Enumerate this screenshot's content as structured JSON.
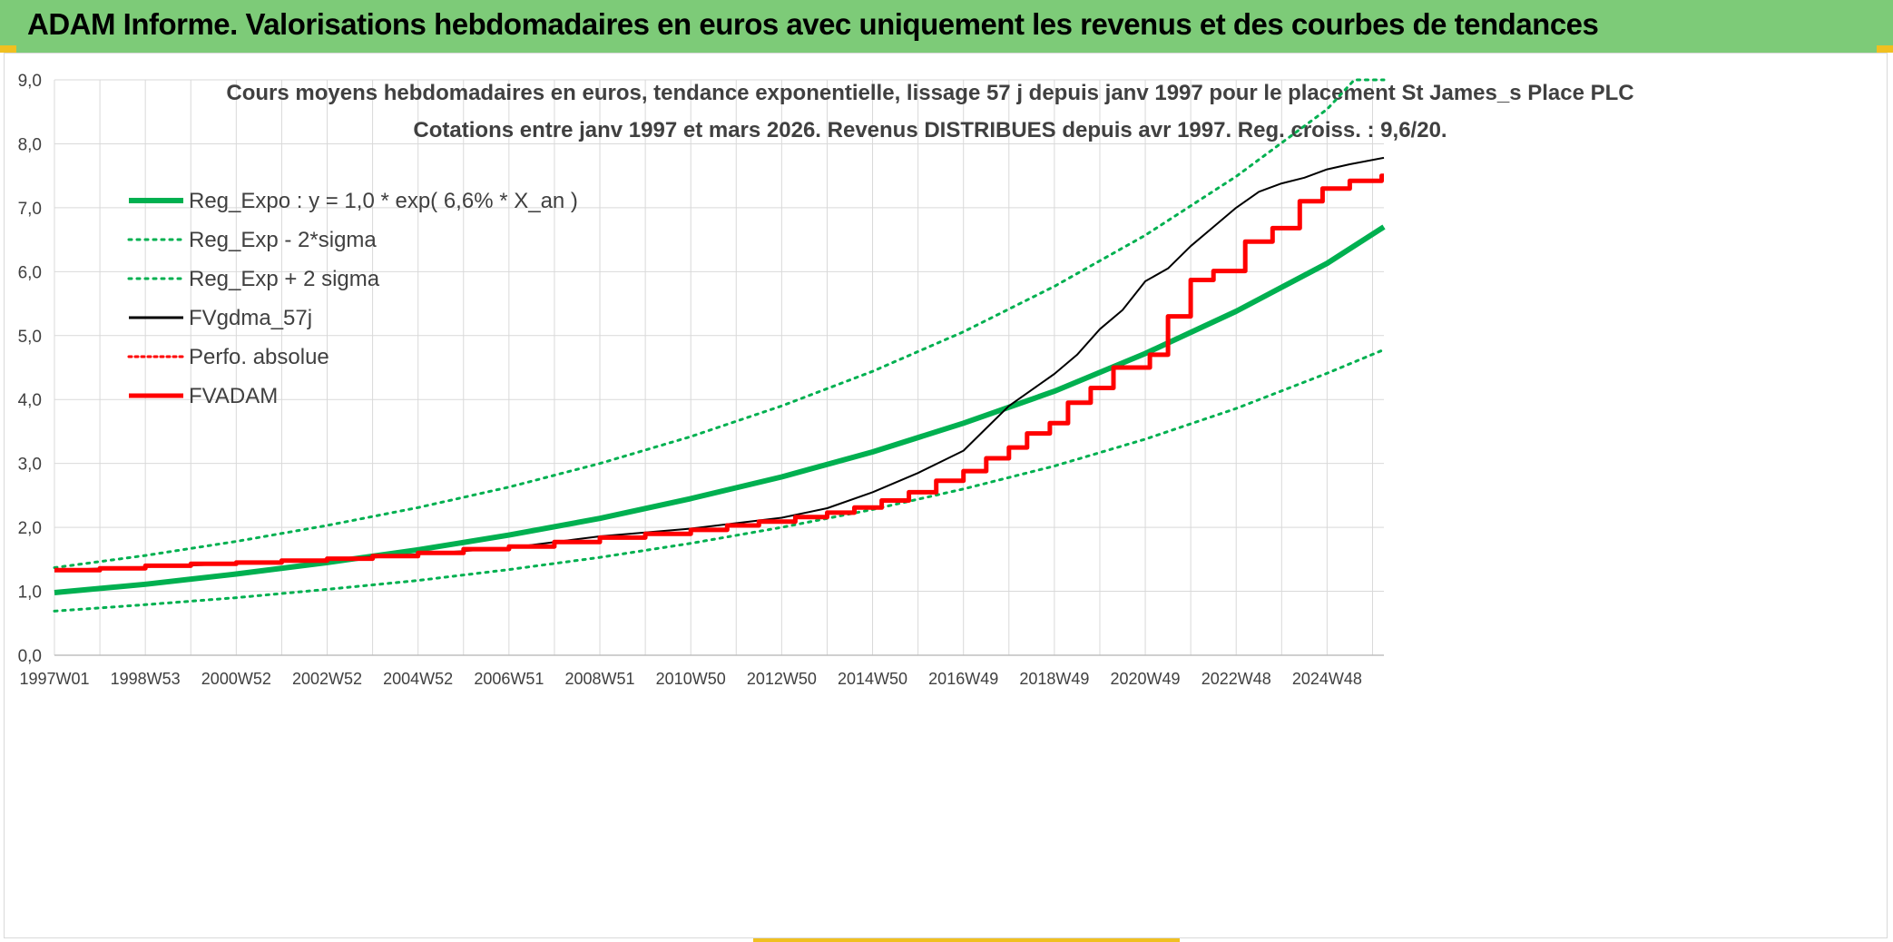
{
  "header": {
    "title": "ADAM Informe. Valorisations hebdomadaires en euros avec uniquement les revenus et des courbes de tendances"
  },
  "colors": {
    "header_bg": "#7dcb78",
    "trend_green": "#00b050",
    "fv_black": "#000000",
    "adam_red": "#ff0000",
    "grid": "#d9d9d9"
  },
  "chart_data": {
    "type": "line",
    "title": "Cours moyens hebdomadaires en euros, tendance exponentielle, lissage 57 j depuis janv 1997 pour le placement St James_s Place PLC",
    "subtitle": "Cotations entre janv 1997 et mars 2026. Revenus DISTRIBUES depuis avr 1997. Reg. croiss. : 9,6/20.",
    "xlabel": "",
    "ylabel": "",
    "ylim": [
      0,
      9
    ],
    "yticks": [
      "0,0",
      "1,0",
      "2,0",
      "3,0",
      "4,0",
      "5,0",
      "6,0",
      "7,0",
      "8,0",
      "9,0"
    ],
    "xlim": [
      1997.0,
      2026.25
    ],
    "xticks": [
      {
        "x": 1997.0,
        "label": "1997W01"
      },
      {
        "x": 1999.0,
        "label": "1998W53"
      },
      {
        "x": 2001.0,
        "label": "2000W52"
      },
      {
        "x": 2003.0,
        "label": "2002W52"
      },
      {
        "x": 2005.0,
        "label": "2004W52"
      },
      {
        "x": 2007.0,
        "label": "2006W51"
      },
      {
        "x": 2009.0,
        "label": "2008W51"
      },
      {
        "x": 2011.0,
        "label": "2010W50"
      },
      {
        "x": 2013.0,
        "label": "2012W50"
      },
      {
        "x": 2015.0,
        "label": "2014W50"
      },
      {
        "x": 2017.0,
        "label": "2016W49"
      },
      {
        "x": 2019.0,
        "label": "2018W49"
      },
      {
        "x": 2021.0,
        "label": "2020W49"
      },
      {
        "x": 2023.0,
        "label": "2022W48"
      },
      {
        "x": 2025.0,
        "label": "2024W48"
      }
    ],
    "grid": true,
    "legend_position": "top-left",
    "series": [
      {
        "name": "Reg_Expo : y = 1,0 * exp( 6,6% *  X_an )",
        "color": "#00b050",
        "style": "solid",
        "width": 6,
        "x": [
          1997,
          1999,
          2001,
          2003,
          2005,
          2007,
          2009,
          2011,
          2013,
          2015,
          2017,
          2019,
          2021,
          2023,
          2025,
          2026.25
        ],
        "y": [
          0.98,
          1.11,
          1.27,
          1.45,
          1.65,
          1.88,
          2.14,
          2.45,
          2.79,
          3.18,
          3.63,
          4.13,
          4.72,
          5.38,
          6.13,
          6.7
        ]
      },
      {
        "name": "Reg_Exp - 2*sigma",
        "color": "#00b050",
        "style": "dotted",
        "width": 3,
        "x": [
          1997,
          1999,
          2001,
          2003,
          2005,
          2007,
          2009,
          2011,
          2013,
          2015,
          2017,
          2019,
          2021,
          2023,
          2025,
          2026.25
        ],
        "y": [
          0.69,
          0.79,
          0.9,
          1.03,
          1.17,
          1.34,
          1.53,
          1.75,
          2.0,
          2.28,
          2.6,
          2.96,
          3.38,
          3.86,
          4.41,
          4.78
        ]
      },
      {
        "name": "Reg_Exp + 2 sigma",
        "color": "#00b050",
        "style": "dotted",
        "width": 3,
        "x": [
          1997,
          1999,
          2001,
          2003,
          2005,
          2007,
          2009,
          2011,
          2013,
          2015,
          2017,
          2019,
          2021,
          2023,
          2025,
          2025.6,
          2026.25
        ],
        "y": [
          1.37,
          1.56,
          1.78,
          2.03,
          2.31,
          2.63,
          3.0,
          3.42,
          3.9,
          4.44,
          5.06,
          5.77,
          6.57,
          7.49,
          8.54,
          9.0,
          9.0
        ]
      },
      {
        "name": "FVgdma_57j",
        "color": "#000000",
        "style": "solid",
        "width": 2,
        "x": [
          1997,
          1999,
          2001,
          2003,
          2005,
          2007,
          2009,
          2011,
          2013,
          2014,
          2015,
          2016,
          2017,
          2017.5,
          2018,
          2018.5,
          2019,
          2019.5,
          2020,
          2020.5,
          2021,
          2021.5,
          2022,
          2022.5,
          2023,
          2023.5,
          2024,
          2024.5,
          2025,
          2025.5,
          2026.25
        ],
        "y": [
          1.33,
          1.38,
          1.43,
          1.5,
          1.58,
          1.68,
          1.86,
          1.98,
          2.15,
          2.3,
          2.55,
          2.85,
          3.2,
          3.55,
          3.9,
          4.15,
          4.4,
          4.7,
          5.1,
          5.4,
          5.85,
          6.05,
          6.4,
          6.7,
          7.0,
          7.25,
          7.38,
          7.47,
          7.6,
          7.68,
          7.78
        ]
      },
      {
        "name": "Perfo. absolue",
        "color": "#ff0000",
        "style": "dotted",
        "width": 2,
        "x": [],
        "y": []
      },
      {
        "name": "FVADAM",
        "color": "#ff0000",
        "style": "step",
        "width": 5,
        "x": [
          1997.0,
          1998.0,
          1999.0,
          2000.0,
          2001.0,
          2002.0,
          2003.0,
          2004.0,
          2005.0,
          2006.0,
          2007.0,
          2008.0,
          2009.0,
          2010.0,
          2011.0,
          2011.8,
          2012.5,
          2013.3,
          2014.0,
          2014.6,
          2015.2,
          2015.8,
          2016.4,
          2017.0,
          2017.5,
          2018.0,
          2018.4,
          2018.9,
          2019.3,
          2019.8,
          2020.3,
          2021.1,
          2021.5,
          2022.0,
          2022.5,
          2023.2,
          2023.8,
          2024.4,
          2024.9,
          2025.5,
          2026.2
        ],
        "y": [
          1.33,
          1.36,
          1.4,
          1.43,
          1.45,
          1.48,
          1.51,
          1.55,
          1.6,
          1.66,
          1.7,
          1.77,
          1.84,
          1.9,
          1.96,
          2.03,
          2.09,
          2.16,
          2.23,
          2.31,
          2.42,
          2.55,
          2.73,
          2.88,
          3.08,
          3.25,
          3.47,
          3.63,
          3.95,
          4.18,
          4.5,
          4.7,
          5.3,
          5.87,
          6.01,
          6.47,
          6.68,
          7.1,
          7.3,
          7.42,
          7.5
        ]
      }
    ]
  }
}
